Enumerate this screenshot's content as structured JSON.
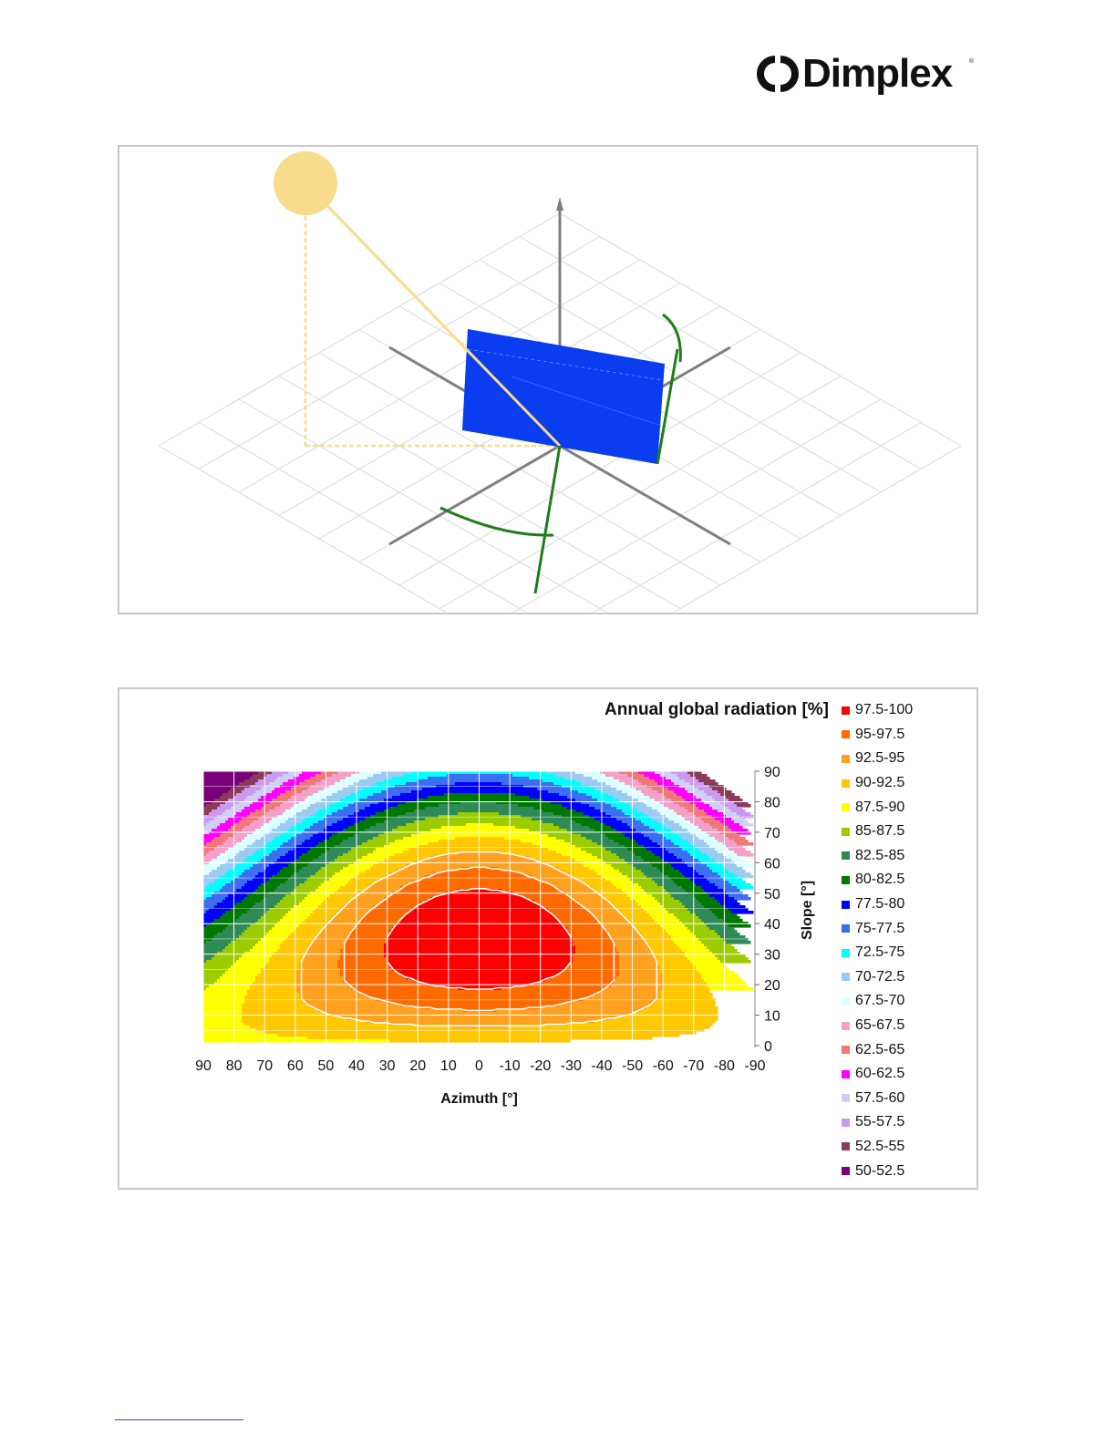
{
  "header": {
    "logo_text": "Dimplex",
    "logo_icon": "dimplex-dc-icon",
    "trademark": "®"
  },
  "scene": {
    "colors": {
      "sun": "#f8dc8c",
      "panel": "#0a3cf0",
      "axes": "#7f7f7f",
      "grid": "#d8d8d8",
      "orientation_arcs": "#1e7d18"
    }
  },
  "chart_data": {
    "type": "heatmap",
    "subtype": "filled-contour",
    "title": "Annual global radiation [%]",
    "xlabel": "Azimuth [°]",
    "ylabel": "Slope [°]",
    "x_ticks": [
      90,
      80,
      70,
      60,
      50,
      40,
      30,
      20,
      10,
      0,
      -10,
      -20,
      -30,
      -40,
      -50,
      -60,
      -70,
      -80,
      -90
    ],
    "y_ticks": [
      0,
      10,
      20,
      30,
      40,
      50,
      60,
      70,
      80,
      90
    ],
    "xlim": [
      90,
      -90
    ],
    "ylim": [
      0,
      90
    ],
    "grid": true,
    "y_axis_side": "right",
    "legend_position": "right",
    "optimum": {
      "azimuth": 0,
      "slope": 35,
      "value": 100
    },
    "levels": [
      {
        "range": "97.5-100",
        "min": 97.5,
        "color": "#ff0000"
      },
      {
        "range": "95-97.5",
        "min": 95,
        "color": "#ff6a00"
      },
      {
        "range": "92.5-95",
        "min": 92.5,
        "color": "#ffa01e"
      },
      {
        "range": "90-92.5",
        "min": 90,
        "color": "#ffc800"
      },
      {
        "range": "87.5-90",
        "min": 87.5,
        "color": "#ffff00"
      },
      {
        "range": "85-87.5",
        "min": 85,
        "color": "#9ccc00"
      },
      {
        "range": "82.5-85",
        "min": 82.5,
        "color": "#2e8b57"
      },
      {
        "range": "80-82.5",
        "min": 80,
        "color": "#007800"
      },
      {
        "range": "77.5-80",
        "min": 77.5,
        "color": "#0000ff"
      },
      {
        "range": "75-77.5",
        "min": 75,
        "color": "#3c6ef0"
      },
      {
        "range": "72.5-75",
        "min": 72.5,
        "color": "#00ffff"
      },
      {
        "range": "70-72.5",
        "min": 70,
        "color": "#9ccaf0"
      },
      {
        "range": "67.5-70",
        "min": 67.5,
        "color": "#dcffff"
      },
      {
        "range": "65-67.5",
        "min": 65,
        "color": "#f5a0c8"
      },
      {
        "range": "62.5-65",
        "min": 62.5,
        "color": "#f07878"
      },
      {
        "range": "60-62.5",
        "min": 60,
        "color": "#ff00ff"
      },
      {
        "range": "57.5-60",
        "min": 57.5,
        "color": "#cfcff5"
      },
      {
        "range": "55-57.5",
        "min": 55,
        "color": "#cc99f0"
      },
      {
        "range": "52.5-55",
        "min": 52.5,
        "color": "#8b3a5a"
      },
      {
        "range": "50-52.5",
        "min": 50,
        "color": "#7a007a"
      }
    ]
  }
}
